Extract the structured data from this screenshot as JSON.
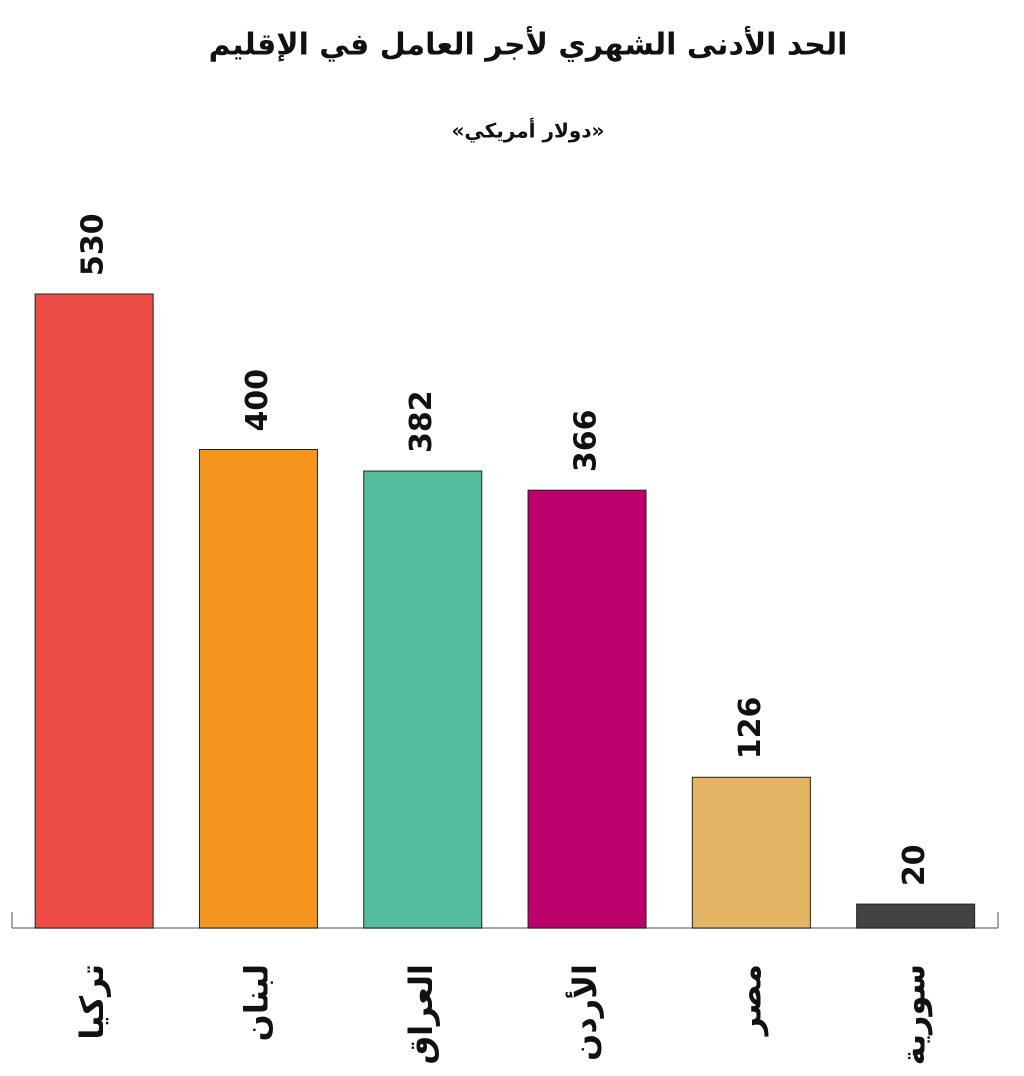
{
  "chart_data": {
    "type": "bar",
    "title": "الحد الأدنى الشهري لأجر العامل في الإقليم",
    "subtitle": "«دولار أمريكي»",
    "categories": [
      "تركيا",
      "لبنان",
      "العراق",
      "الأردن",
      "مصر",
      "سورية"
    ],
    "values": [
      530,
      400,
      382,
      366,
      126,
      20
    ],
    "colors": [
      "#ee4c46",
      "#f4951f",
      "#56bc9e",
      "#bd006c",
      "#e4b565",
      "#434343"
    ]
  }
}
